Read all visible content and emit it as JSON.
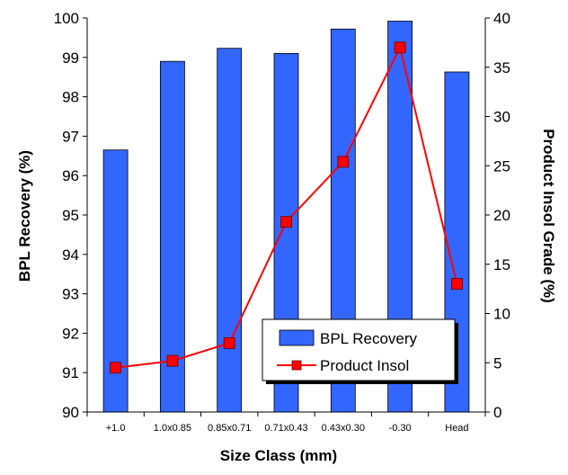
{
  "chart_data": {
    "type": "bar",
    "title": "",
    "categories": [
      "+1.0",
      "1.0x0.85",
      "0.85x0.71",
      "0.71x0.43",
      "0.43x0.30",
      "-0.30",
      "Head"
    ],
    "xlabel": "Size Class (mm)",
    "ylabel_left": "BPL Recovery (%)",
    "ylabel_right": "Product Insol Grade (%)",
    "ylim_left": [
      90,
      100
    ],
    "ylim_right": [
      0,
      40
    ],
    "yticks_left": [
      "90",
      "91",
      "92",
      "93",
      "94",
      "95",
      "96",
      "97",
      "98",
      "99",
      "100"
    ],
    "yticks_right": [
      "0",
      "5",
      "10",
      "15",
      "20",
      "25",
      "30",
      "35",
      "40"
    ],
    "grid": false,
    "legend_position": "lower-right",
    "series": [
      {
        "name": "BPL Recovery",
        "type": "bar",
        "axis": "left",
        "color": "#3366ff",
        "values": [
          96.65,
          98.9,
          99.23,
          99.1,
          99.72,
          99.92,
          98.63
        ]
      },
      {
        "name": "Product Insol",
        "type": "line",
        "axis": "right",
        "color": "#ff0000",
        "marker": "square",
        "values": [
          4.5,
          5.2,
          7.0,
          19.3,
          25.4,
          37.0,
          13.0
        ]
      }
    ]
  }
}
